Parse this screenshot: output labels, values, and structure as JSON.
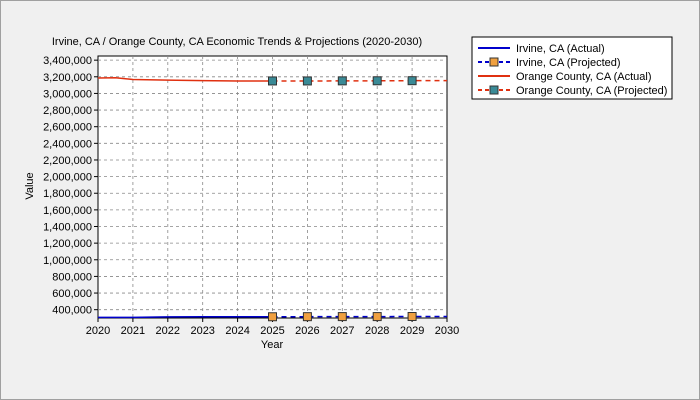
{
  "chart_data": {
    "type": "line",
    "title": "Irvine, CA / Orange County, CA Economic Trends & Projections (2020-2030)",
    "xlabel": "Year",
    "ylabel": "Value",
    "xlim": [
      2020,
      2030
    ],
    "ylim": [
      300000,
      3450000
    ],
    "x_ticks": [
      2020,
      2021,
      2022,
      2023,
      2024,
      2025,
      2026,
      2027,
      2028,
      2029,
      2030
    ],
    "y_ticks": [
      400000,
      600000,
      800000,
      1000000,
      1200000,
      1400000,
      1600000,
      1800000,
      2000000,
      2200000,
      2400000,
      2600000,
      2800000,
      3000000,
      3200000,
      3400000
    ],
    "y_tick_labels": [
      "400,000",
      "600,000",
      "800,000",
      "1,000,000",
      "1,200,000",
      "1,400,000",
      "1,600,000",
      "1,800,000",
      "2,000,000",
      "2,200,000",
      "2,400,000",
      "2,600,000",
      "2,800,000",
      "3,000,000",
      "3,200,000",
      "3,400,000"
    ],
    "grid": true,
    "legend_position": "right-outside",
    "series": [
      {
        "name": "Irvine, CA (Actual)",
        "color": "#0000cc",
        "style": "solid",
        "marker": "none",
        "x": [
          2020,
          2021,
          2022,
          2023,
          2024,
          2025
        ],
        "y": [
          307000,
          307000,
          313000,
          314000,
          314000,
          315000
        ]
      },
      {
        "name": "Irvine, CA (Projected)",
        "color": "#0000cc",
        "marker_color": "#f0a040",
        "style": "dashed",
        "marker": "square",
        "x": [
          2025,
          2026,
          2027,
          2028,
          2029,
          2030
        ],
        "y": [
          315000,
          316000,
          317000,
          317000,
          318000,
          318000
        ]
      },
      {
        "name": "Orange County, CA (Actual)",
        "color": "#e03010",
        "style": "solid",
        "marker": "none",
        "x": [
          2020,
          2020.5,
          2021,
          2022,
          2023,
          2024,
          2025
        ],
        "y": [
          3186000,
          3188000,
          3168000,
          3160000,
          3154000,
          3150000,
          3150000
        ]
      },
      {
        "name": "Orange County, CA (Projected)",
        "color": "#e03010",
        "marker_color": "#3a8a96",
        "style": "dashed",
        "marker": "square",
        "x": [
          2025,
          2026,
          2027,
          2028,
          2029,
          2030
        ],
        "y": [
          3150000,
          3150000,
          3151000,
          3152000,
          3153000,
          3154000
        ]
      }
    ]
  }
}
